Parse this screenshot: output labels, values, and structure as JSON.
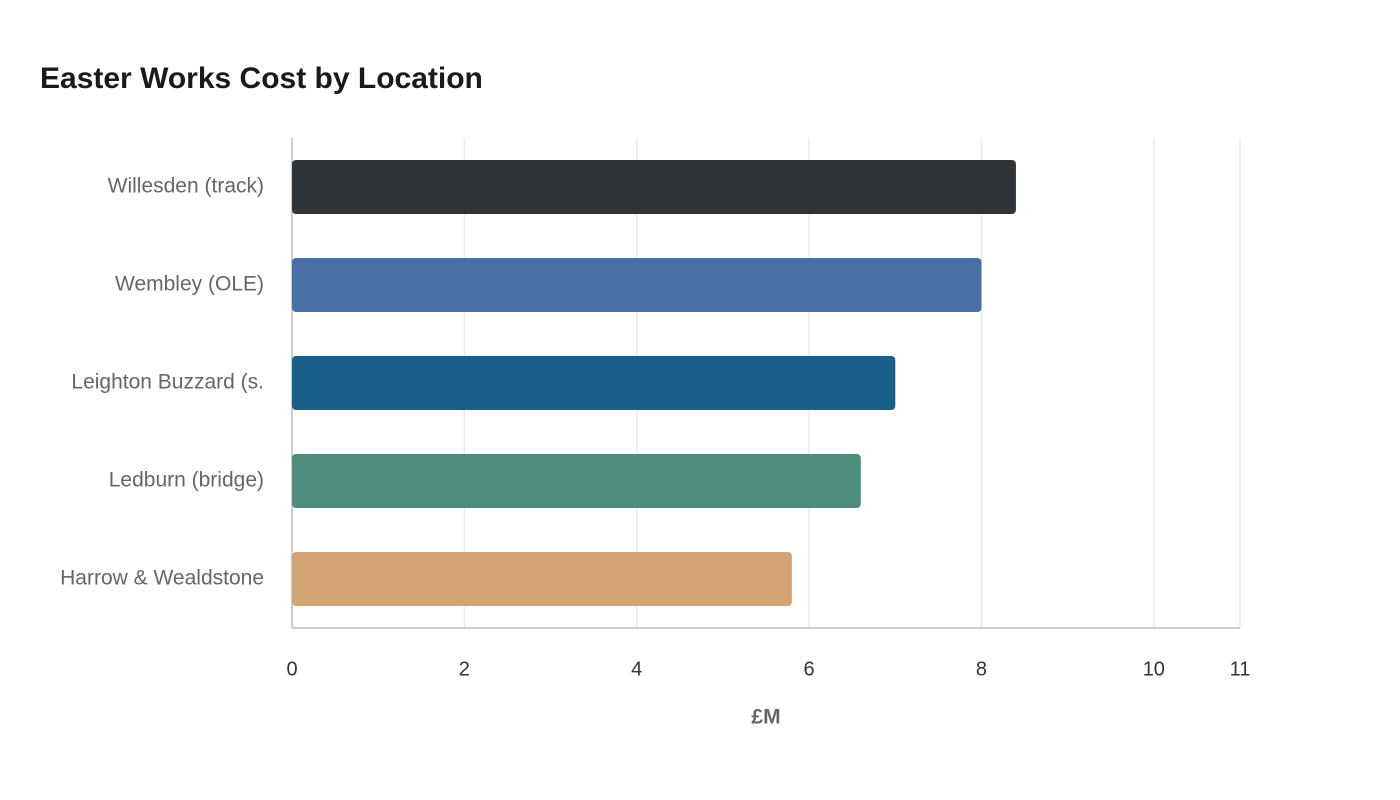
{
  "chart_data": {
    "type": "hbar",
    "title": "Easter Works Cost by Location",
    "categories": [
      "Willesden (track)",
      "Wembley (OLE)",
      "Leighton Buzzard (s.",
      "Ledburn (bridge)",
      "Harrow & Wealdstone"
    ],
    "values": [
      8.4,
      8.0,
      7.0,
      6.6,
      5.8
    ],
    "colors": [
      "#2e3437",
      "#4a6fa5",
      "#18608a",
      "#4e8d7c",
      "#d4a373"
    ],
    "xlabel": "£M",
    "xlim": [
      0,
      11
    ],
    "xticks": [
      0,
      2,
      4,
      6,
      8,
      10,
      11
    ],
    "grid": true
  }
}
